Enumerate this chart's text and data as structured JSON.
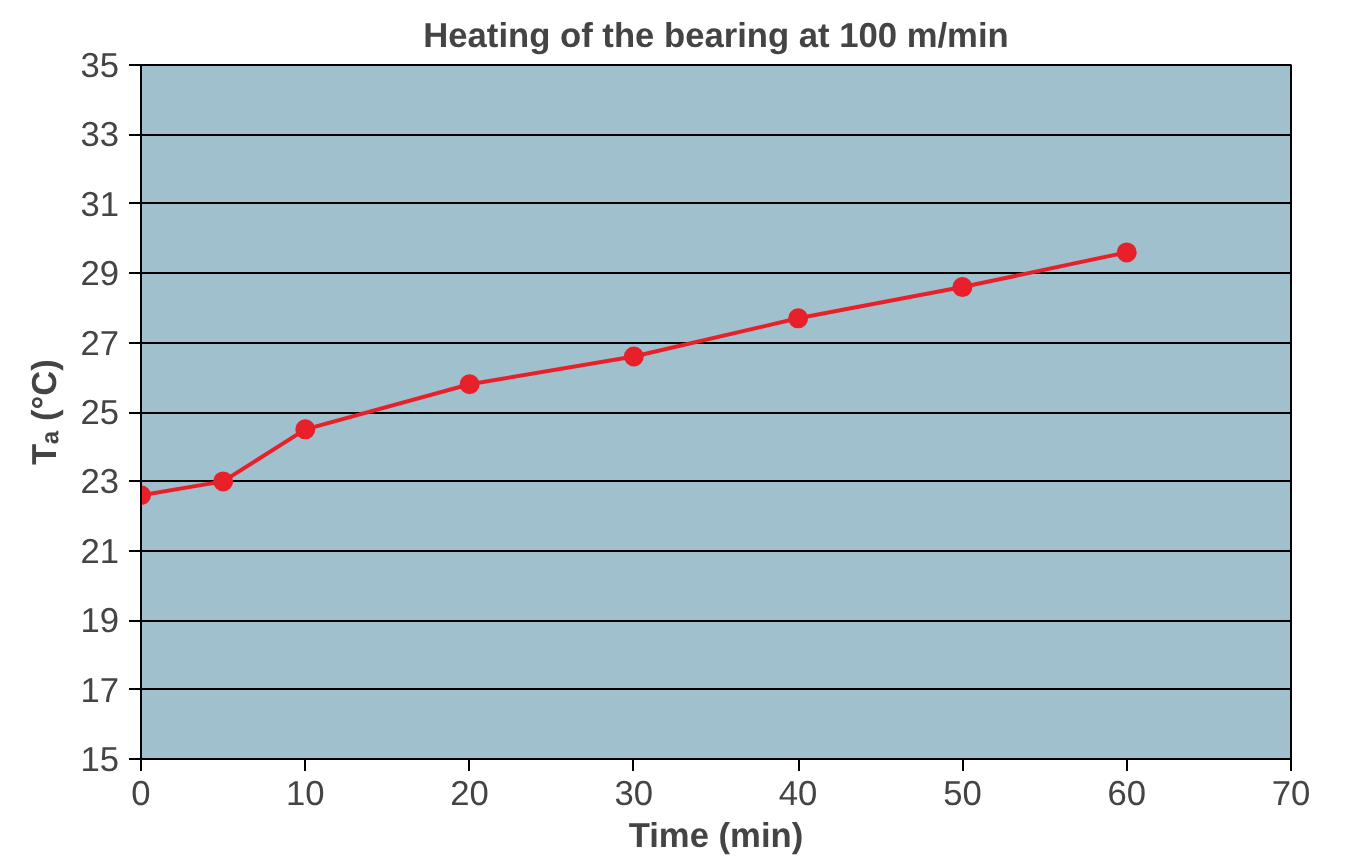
{
  "chart_data": {
    "type": "line",
    "title": "Heating of the bearing at 100 m/min",
    "xlabel": "Time (min)",
    "ylabel": "Tₐ (°C)",
    "x": [
      0,
      5,
      10,
      20,
      30,
      40,
      50,
      60
    ],
    "series": [
      {
        "color": "#e8202a",
        "values": [
          22.6,
          23.0,
          24.5,
          25.8,
          26.6,
          27.7,
          28.6,
          29.6
        ]
      }
    ],
    "xlim": [
      0,
      70
    ],
    "xticks": [
      0,
      10,
      20,
      30,
      40,
      50,
      60,
      70
    ],
    "ylim": [
      15,
      35
    ],
    "yticks": [
      15,
      17,
      19,
      21,
      23,
      25,
      27,
      29,
      31,
      33,
      35
    ],
    "grid": "y",
    "marker": "circle",
    "line_style": "solid"
  }
}
